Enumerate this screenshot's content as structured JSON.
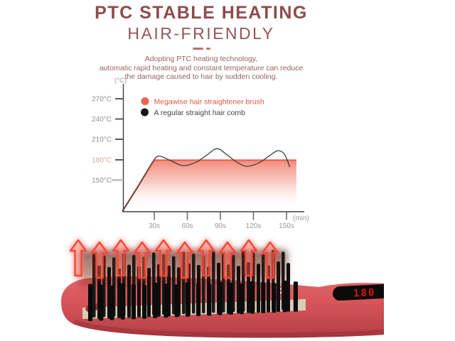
{
  "header": {
    "title": "PTC STABLE HEATING",
    "subtitle": "HAIR-FRIENDLY",
    "description_lines": [
      "Adopting PTC heating technology,",
      "automatic rapid heating and constant temperature can reduce",
      "the damage caused to hair by sudden cooling."
    ]
  },
  "colors": {
    "heading": "#8d4b4f",
    "body_text": "#956461",
    "accent_red": "#ee6150",
    "axis_gray": "#8f8f8f",
    "highlight_tick": "#d8a19b",
    "product_red": "#d65357"
  },
  "chart_data": {
    "type": "line",
    "title": "",
    "y_axis_unit": "(°C)",
    "x_axis_unit": "(min)",
    "y_ticks": [
      "270°C",
      "240°C",
      "210°C",
      "180°C",
      "150°C"
    ],
    "y_tick_highlight": "180°C",
    "x_ticks": [
      "30s",
      "60s",
      "90s",
      "120s",
      "150s"
    ],
    "ylim": [
      103,
      290
    ],
    "xlim_seconds": [
      0,
      165
    ],
    "grid": false,
    "legend_position": "top-left-inside",
    "legend": [
      {
        "label": "Megawise hair straightener brush",
        "color": "#ee6150",
        "text_color": "#e05648"
      },
      {
        "label": "A regular straight hair comb",
        "color": "#141414",
        "text_color": "#424242"
      }
    ],
    "series": [
      {
        "name": "Megawise hair straightener brush",
        "color": "#ee6150",
        "style": "rise-then-constant-180",
        "area_fill": "red-to-white-gradient",
        "points": [
          [
            0,
            104
          ],
          [
            29,
            180
          ],
          [
            158,
            180
          ]
        ]
      },
      {
        "name": "A regular straight hair comb",
        "color": "#3c3c3c",
        "style": "fluctuating-around-180",
        "points": [
          [
            0,
            104
          ],
          [
            14,
            140
          ],
          [
            27,
            176
          ],
          [
            33,
            186
          ],
          [
            43,
            180
          ],
          [
            55,
            172
          ],
          [
            67,
            177
          ],
          [
            77,
            188
          ],
          [
            86,
            197
          ],
          [
            95,
            188
          ],
          [
            104,
            177
          ],
          [
            113,
            171
          ],
          [
            124,
            176
          ],
          [
            133,
            186
          ],
          [
            141,
            194
          ],
          [
            147,
            189
          ],
          [
            152,
            170
          ]
        ]
      }
    ]
  },
  "product": {
    "description": "red hair straightener brush with black bristles and rising heat arrows",
    "display_text": "180"
  }
}
